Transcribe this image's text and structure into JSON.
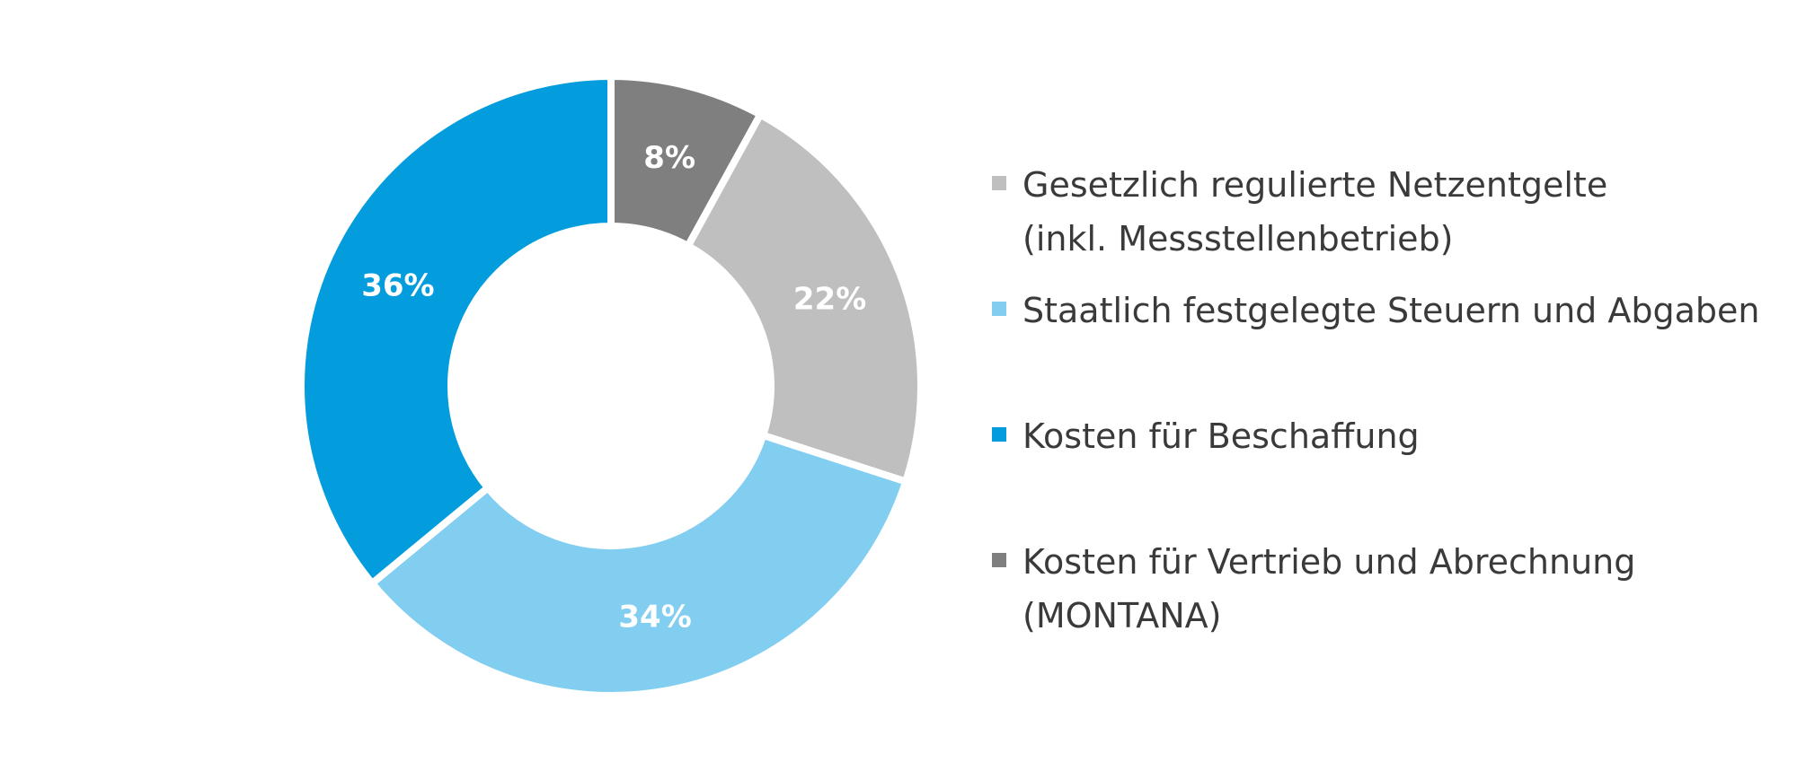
{
  "chart_data": {
    "type": "pie",
    "donut": true,
    "title": "",
    "legend_position": "right",
    "slices": [
      {
        "label": "Kosten für Vertrieb und Abrechnung (MONTANA)",
        "value": 8,
        "display": "8%",
        "color": "#7f7f7f"
      },
      {
        "label": "Gesetzlich regulierte Netzentgelte (inkl. Messstellenbetrieb)",
        "value": 22,
        "display": "22%",
        "color": "#bfbfbf"
      },
      {
        "label": "Staatlich festgelegte Steuern und Abgaben",
        "value": 34,
        "display": "34%",
        "color": "#82cef0"
      },
      {
        "label": "Kosten für Beschaffung",
        "value": 36,
        "display": "36%",
        "color": "#039ddd"
      }
    ]
  },
  "legend": {
    "items": [
      {
        "lines": [
          "Gesetzlich regulierte Netzentgelte",
          "(inkl. Messstellenbetrieb)"
        ],
        "color": "#bfbfbf"
      },
      {
        "lines": [
          "Staatlich festgelegte Steuern und Abgaben"
        ],
        "color": "#82cef0"
      },
      {
        "lines": [
          "Kosten für Beschaffung"
        ],
        "color": "#039ddd"
      },
      {
        "lines": [
          "Kosten für Vertrieb und Abrechnung",
          "(MONTANA)"
        ],
        "color": "#7f7f7f"
      }
    ]
  }
}
